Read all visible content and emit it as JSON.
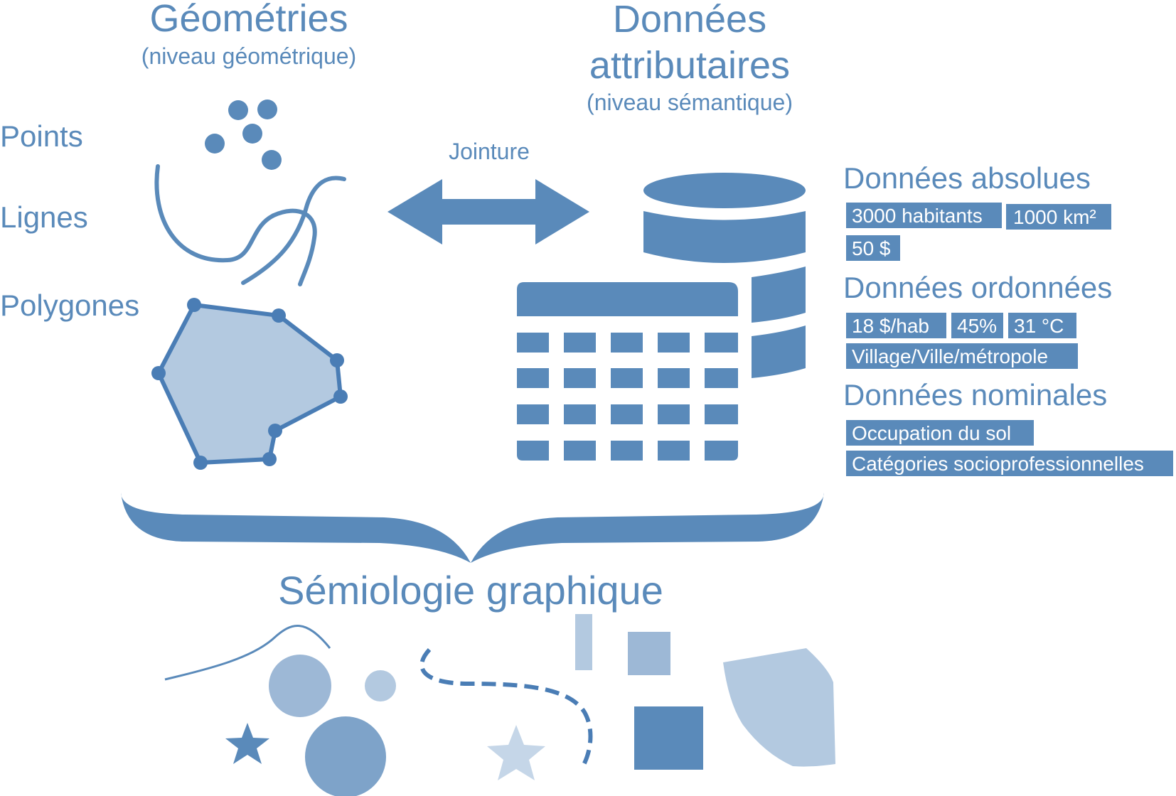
{
  "colors": {
    "primary": "#5a8aba",
    "dark": "#4a7db5",
    "light": "#b3c9e0",
    "medium": "#9db8d6",
    "pale": "#c5d6e8",
    "text": "#5a8aba",
    "tag_text": "#ffffff"
  },
  "geometries": {
    "title": "Géométries",
    "subtitle": "(niveau géométrique)",
    "types": {
      "points": "Points",
      "lines": "Lignes",
      "polygons": "Polygones"
    }
  },
  "attributes": {
    "title_line1": "Données",
    "title_line2": "attributaires",
    "subtitle": "(niveau sémantique)"
  },
  "join": {
    "label": "Jointure"
  },
  "data_types": {
    "absolute": {
      "title": "Données absolues",
      "tags": [
        "3000 habitants",
        "1000 km²",
        "50 $"
      ]
    },
    "ordered": {
      "title": "Données ordonnées",
      "tags": [
        "18 $/hab",
        "45%",
        "31 °C",
        "Village/Ville/métropole"
      ]
    },
    "nominal": {
      "title": "Données nominales",
      "tags": [
        "Occupation du sol",
        "Catégories socioprofessionnelles"
      ]
    }
  },
  "semiology": {
    "title": "Sémiologie graphique"
  },
  "icons": {
    "points": "points-icon",
    "lines": "lines-icon",
    "polygon": "polygon-icon",
    "database": "database-icon",
    "table": "table-icon",
    "join_arrow": "double-arrow-icon",
    "brace": "curly-brace-icon"
  }
}
